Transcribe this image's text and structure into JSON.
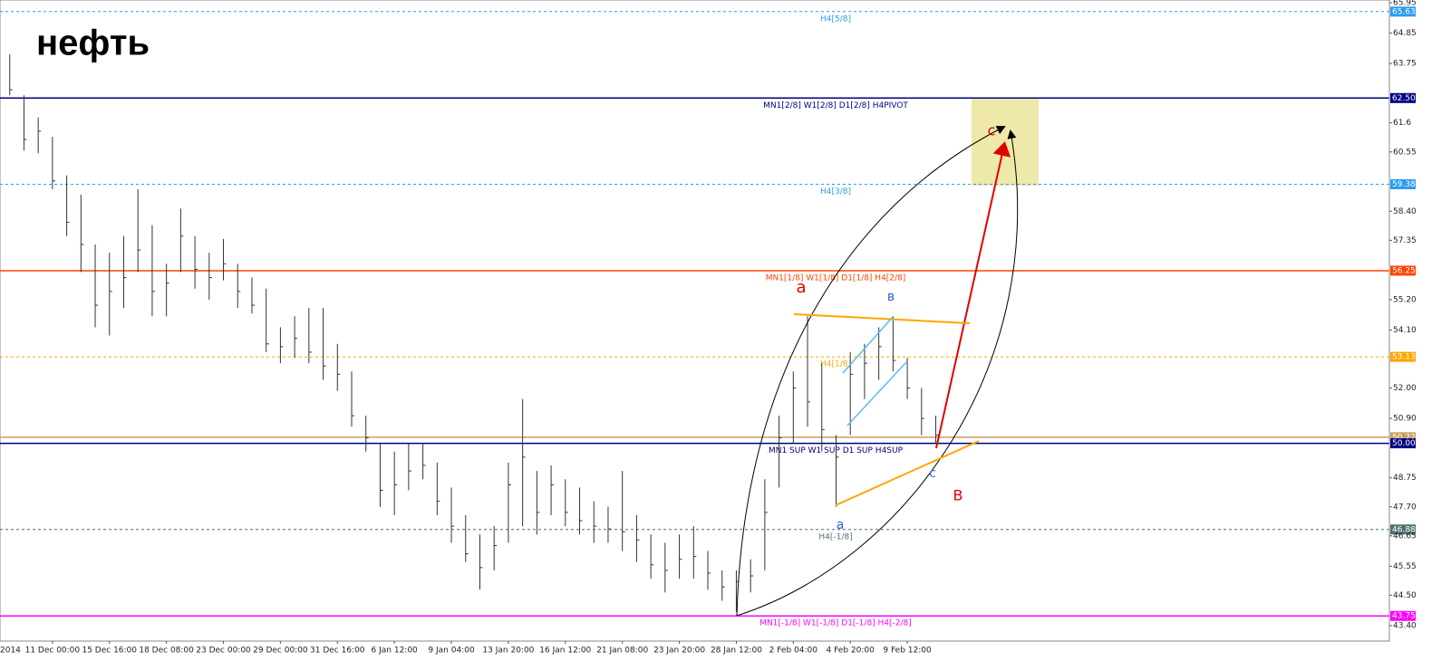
{
  "chart_data": {
    "type": "ohlc",
    "title": "нефть",
    "color": "#333333",
    "ylim": [
      42.84,
      66.05
    ],
    "yticks": [
      65.95,
      64.85,
      63.75,
      61.6,
      60.55,
      {
        "value": 58.4,
        "label": "58.40"
      },
      57.35,
      {
        "value": 55.2,
        "label": "55.20"
      },
      {
        "value": 54.1,
        "label": "54.10"
      },
      {
        "value": 52,
        "label": "52.00"
      },
      {
        "value": 50.9,
        "label": "50.90"
      },
      48.75,
      {
        "value": 47.7,
        "label": "47.70"
      },
      46.65,
      45.55,
      {
        "value": 44.5,
        "label": "44.50"
      },
      {
        "value": 43.4,
        "label": "43.40"
      }
    ],
    "categories": [
      "2014",
      "11 Dec 00:00",
      "15 Dec 16:00",
      "18 Dec 08:00",
      "23 Dec 00:00",
      "29 Dec 00:00",
      "31 Dec 16:00",
      "6 Jan 12:00",
      "9 Jan 04:00",
      "13 Jan 20:00",
      "16 Jan 12:00",
      "21 Jan 08:00",
      "23 Jan 20:00",
      "28 Jan 12:00",
      "2 Feb 04:00",
      "4 Feb 20:00",
      "9 Feb 12:00"
    ],
    "high": [
      64.08,
      62.6,
      61.8,
      61.1,
      59.7,
      59.0,
      57.2,
      56.9,
      57.5,
      59.2,
      57.9,
      56.5,
      58.5,
      57.5,
      56.9,
      57.4,
      56.5,
      56.0,
      55.6,
      54.2,
      54.6,
      54.9,
      54.9,
      53.6,
      52.6,
      51.0,
      50.0,
      49.7,
      50.0,
      50.0,
      49.3,
      48.4,
      47.4,
      46.7,
      47.0,
      49.3,
      51.6,
      49.0,
      49.2,
      48.7,
      48.4,
      47.9,
      47.7,
      49.0,
      47.4,
      46.7,
      46.4,
      46.7,
      47.0,
      46.1,
      45.4,
      45.4,
      45.8,
      48.7,
      51.0,
      52.6,
      54.6,
      52.9,
      50.3,
      53.3,
      53.6,
      54.2,
      54.6,
      53.1,
      52.0,
      51.0
    ],
    "low": [
      62.6,
      60.6,
      60.5,
      59.2,
      57.5,
      56.2,
      54.2,
      53.9,
      54.9,
      56.2,
      54.6,
      54.6,
      56.2,
      55.6,
      55.2,
      55.9,
      54.9,
      54.7,
      53.3,
      52.9,
      53.1,
      52.9,
      52.3,
      51.9,
      50.6,
      49.7,
      47.7,
      47.4,
      48.3,
      48.7,
      47.4,
      46.4,
      45.7,
      44.7,
      45.4,
      46.4,
      47.0,
      46.7,
      47.4,
      47.0,
      46.7,
      46.4,
      46.4,
      46.1,
      45.7,
      45.1,
      44.6,
      45.1,
      45.1,
      44.7,
      44.3,
      43.9,
      44.6,
      45.4,
      48.4,
      50.0,
      50.6,
      49.7,
      47.7,
      50.3,
      51.6,
      52.3,
      52.6,
      51.6,
      50.3,
      50.0
    ],
    "close": [
      62.8,
      61.0,
      61.3,
      59.5,
      58.0,
      57.2,
      55.0,
      55.5,
      56.0,
      57.0,
      55.5,
      55.8,
      57.5,
      56.3,
      56.0,
      56.5,
      55.5,
      55.0,
      53.6,
      53.5,
      53.8,
      53.3,
      52.8,
      52.5,
      51.0,
      50.2,
      48.3,
      48.5,
      49.0,
      49.2,
      47.9,
      47.0,
      46.0,
      45.5,
      46.3,
      48.5,
      49.5,
      47.5,
      48.5,
      47.5,
      47.2,
      47.0,
      46.9,
      46.8,
      46.5,
      45.6,
      45.4,
      45.8,
      45.9,
      45.3,
      44.8,
      45.0,
      45.2,
      47.5,
      50.2,
      52.0,
      51.5,
      50.5,
      49.5,
      52.5,
      52.9,
      53.5,
      53.0,
      52.0,
      50.9,
      50.3
    ],
    "levels": [
      {
        "value": 65.63,
        "label": "65.63",
        "text": "H4[5/8]",
        "color": "#2a9df0",
        "dash": true
      },
      {
        "value": 62.5,
        "label": "62.50",
        "text": "MN1[2/8] W1[2/8] D1[2/8] H4PIVOT",
        "color": "#000080",
        "dash": false
      },
      {
        "value": 59.38,
        "label": "59.38",
        "text": "H4[3/8]",
        "color": "#2a9df0",
        "dash": true
      },
      {
        "value": 56.25,
        "label": "56.25",
        "text": "MN1[1/8] W1[1/8] D1[1/8] H4[2/8]",
        "color": "#ff4500",
        "dash": false
      },
      {
        "value": 53.13,
        "label": "53.13",
        "text": "H4[1/8]",
        "color": "#ffa500",
        "dash": true
      },
      {
        "value": 50.22,
        "label": "50.22",
        "color": "#c8a060",
        "dash": false
      },
      {
        "value": 50,
        "label": "50.00",
        "text": "MN1 SUP W1 SUP D1 SUP H4SUP",
        "color": "#000080",
        "dash": false
      },
      {
        "value": 46.88,
        "label": "46.88",
        "text": "H4[-1/8]",
        "color": "#4f6f6f",
        "dash": true
      },
      {
        "value": 43.75,
        "label": "43.75",
        "text": "MN1[-1/8] W1[-1/8] D1[-1/8] H4[-2/8]",
        "color": "#ff00ff",
        "dash": false
      }
    ],
    "annotations": [
      {
        "text": "a",
        "color": "#e00000"
      },
      {
        "text": "в",
        "color": "#3060d0"
      },
      {
        "text": "a",
        "color": "#3060d0"
      },
      {
        "text": "c",
        "color": "#3060d0"
      },
      {
        "text": "B",
        "color": "#e00000"
      },
      {
        "text": "c",
        "color": "#e00000"
      }
    ]
  }
}
